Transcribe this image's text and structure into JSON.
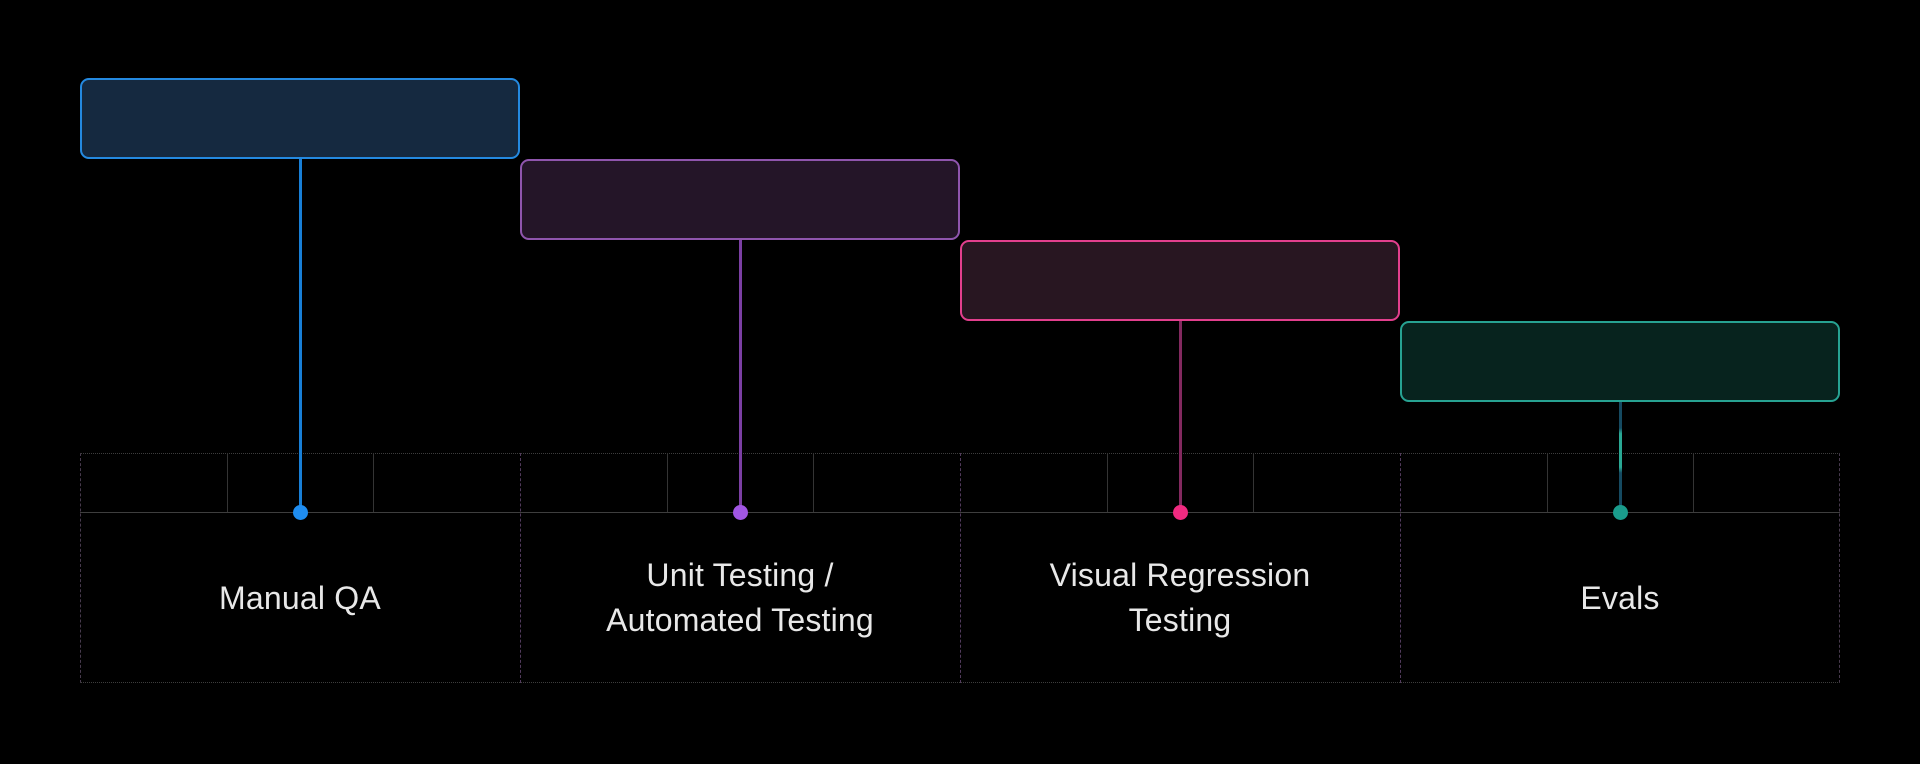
{
  "page": {
    "background": "#000000"
  },
  "diagram": {
    "name": "testing-approaches-timeline",
    "label_color": "#e8e8e8",
    "columns": [
      {
        "id": "manual-qa",
        "label": "Manual QA",
        "accent": "#2489e0",
        "box_fill": "#152940",
        "box_border": "#2489e0",
        "line_color": "#187fd6",
        "dot_color": "#1f8df0"
      },
      {
        "id": "unit-automated-testing",
        "label": "Unit Testing /\nAutomated Testing",
        "accent": "#8f55ad",
        "box_fill": "#241528",
        "box_border": "#8f55ad",
        "line_color": "#7b3fa3",
        "dot_color": "#a156e3"
      },
      {
        "id": "visual-regression-testing",
        "label": "Visual Regression\nTesting",
        "accent": "#e23f8d",
        "box_fill": "#281621",
        "box_border": "#e23f8d",
        "line_color": "#83295f",
        "dot_color": "#f02a80"
      },
      {
        "id": "evals",
        "label": "Evals",
        "accent": "#27a292",
        "box_fill": "#07231e",
        "box_border": "#27a292",
        "line_color": "#154a61",
        "line_highlight": "#2aa894",
        "dot_color": "#1a9c8c"
      }
    ]
  }
}
